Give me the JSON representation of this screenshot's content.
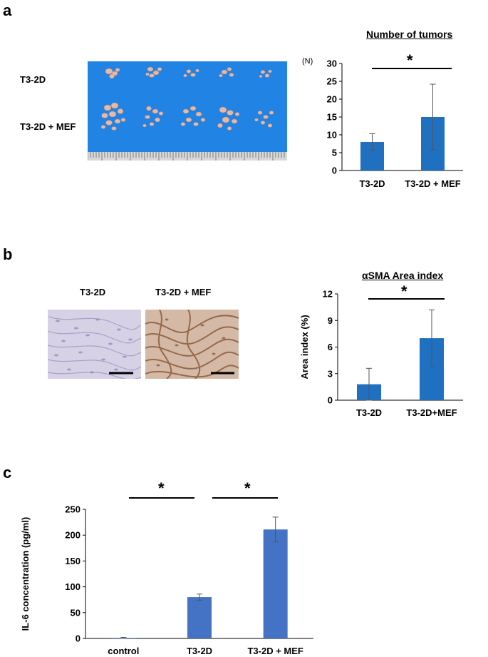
{
  "figure": {
    "panel_a": {
      "letter": "a",
      "photo_row_labels": [
        "T3-2D",
        "T3-2D + MEF"
      ],
      "chart_title": "Number of tumors",
      "unit_label": "(N)",
      "significance": "*"
    },
    "panel_b": {
      "letter": "b",
      "image_labels": [
        "T3-2D",
        "T3-2D + MEF"
      ],
      "chart_title": "αSMA Area index",
      "significance": "*"
    },
    "panel_c": {
      "letter": "c",
      "significance_1": "*",
      "significance_2": "*"
    }
  },
  "chart_data": [
    {
      "type": "bar",
      "title": "Number of tumors",
      "xlabel": "",
      "ylabel": "(N)",
      "categories": [
        "T3-2D",
        "T3-2D + MEF"
      ],
      "values": [
        8,
        15
      ],
      "errors": [
        2.3,
        9.2
      ],
      "yticks": [
        "0",
        "5",
        "10",
        "15",
        "20",
        "25",
        "30"
      ],
      "ylim": [
        0,
        30
      ],
      "color": "#1f70c1",
      "grid": false
    },
    {
      "type": "bar",
      "title": "αSMA Area index",
      "xlabel": "",
      "ylabel": "Area index (%)",
      "categories": [
        "T3-2D",
        "T3-2D+MEF"
      ],
      "values": [
        1.8,
        7
      ],
      "errors": [
        1.8,
        3.2
      ],
      "yticks": [
        "0",
        "3",
        "6",
        "9",
        "12"
      ],
      "ylim": [
        0,
        12
      ],
      "color": "#1f70c1",
      "grid": false
    },
    {
      "type": "bar",
      "title": "",
      "xlabel": "",
      "ylabel": "IL-6 concentration (pg/ml)",
      "categories": [
        "control",
        "T3-2D",
        "T3-2D + MEF"
      ],
      "values": [
        1,
        80,
        211
      ],
      "errors": [
        1,
        6,
        24
      ],
      "yticks": [
        "0",
        "50",
        "100",
        "150",
        "200",
        "250"
      ],
      "ylim": [
        0,
        250
      ],
      "color": "#4472c4",
      "grid": false
    }
  ]
}
